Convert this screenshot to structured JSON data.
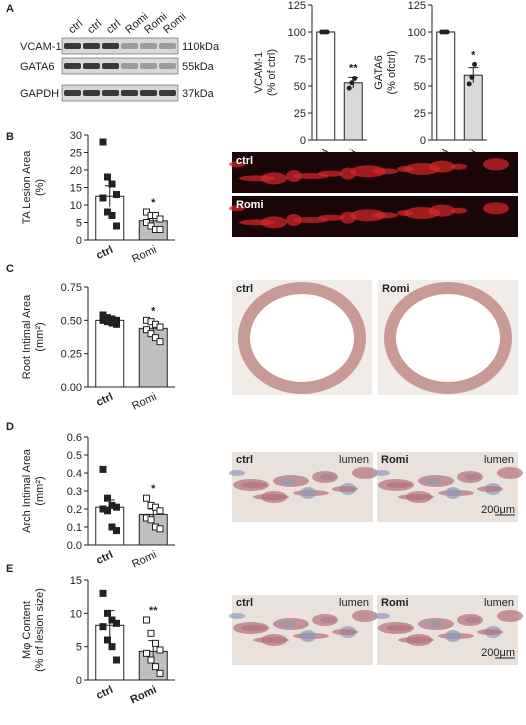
{
  "panels": [
    "A",
    "B",
    "C",
    "D",
    "E"
  ],
  "blot": {
    "lanes": [
      "ctrl",
      "ctrl",
      "ctrl",
      "Romi",
      "Romi",
      "Romi"
    ],
    "proteins": [
      "VCAM-1",
      "GATA6",
      "GAPDH"
    ],
    "sizes": [
      "110kDa",
      "55kDa",
      "37kDa"
    ]
  },
  "micrographs": [
    {
      "labels": [
        "ctrl",
        "Romi"
      ]
    },
    {
      "labels": [
        "ctrl",
        "Romi"
      ]
    },
    {
      "labels": [
        "ctrl",
        "lumen",
        "Romi",
        "lumen",
        "200μm"
      ]
    },
    {
      "labels": [
        "ctrl",
        "lumen",
        "Romi",
        "lumen",
        "200μm"
      ]
    }
  ],
  "chart_data": [
    {
      "type": "bar",
      "y_label": [
        "VCAM-1",
        "(% of ctrl)"
      ],
      "categories": [
        "ctrl",
        "Romi"
      ],
      "values": [
        100,
        53
      ],
      "errors": [
        0,
        5
      ],
      "points": [
        [
          100,
          100,
          100
        ],
        [
          48,
          53,
          57
        ]
      ],
      "marker": "circle",
      "colors": [
        "#ffffff",
        "#d9d9d9"
      ],
      "annotation": "**",
      "ylim": [
        0,
        125
      ],
      "yticks": [
        0,
        25,
        50,
        75,
        100,
        125
      ]
    },
    {
      "type": "bar",
      "y_label": [
        "GATA6",
        "(% ofctrl)"
      ],
      "categories": [
        "ctrl",
        "Romi"
      ],
      "values": [
        100,
        60
      ],
      "errors": [
        0,
        7
      ],
      "points": [
        [
          100,
          100,
          100
        ],
        [
          52,
          58,
          70
        ]
      ],
      "marker": "circle",
      "colors": [
        "#ffffff",
        "#d9d9d9"
      ],
      "annotation": "*",
      "ylim": [
        0,
        125
      ],
      "yticks": [
        0,
        25,
        50,
        75,
        100,
        125
      ]
    },
    {
      "type": "bar",
      "y_label": [
        "TA Lesion Area",
        "(%)"
      ],
      "categories": [
        "ctrl",
        "Romi"
      ],
      "values": [
        12.5,
        5.5
      ],
      "errors": [
        3,
        1
      ],
      "points": [
        [
          28,
          18,
          16,
          13,
          12,
          8,
          7,
          4
        ],
        [
          8,
          7,
          7,
          6,
          5,
          4,
          3,
          3
        ]
      ],
      "marker": "square",
      "colors": [
        "#ffffff",
        "#bfbfbf"
      ],
      "annotation": "*",
      "ylim": [
        0,
        30
      ],
      "yticks": [
        0,
        5,
        10,
        15,
        20,
        25,
        30
      ]
    },
    {
      "type": "bar",
      "y_label": [
        "Root Intimal Area",
        "(mm²)"
      ],
      "categories": [
        "ctrl",
        "Romi"
      ],
      "values": [
        0.5,
        0.44
      ],
      "errors": [
        0.02,
        0.03
      ],
      "points": [
        [
          0.54,
          0.52,
          0.51,
          0.5,
          0.5,
          0.49,
          0.48,
          0.47
        ],
        [
          0.5,
          0.49,
          0.47,
          0.45,
          0.43,
          0.4,
          0.37,
          0.34
        ]
      ],
      "marker": "square",
      "colors": [
        "#ffffff",
        "#bfbfbf"
      ],
      "annotation": "*",
      "ylim": [
        0,
        0.75
      ],
      "yticks": [
        {
          "value": 0,
          "label": "0.00"
        },
        {
          "value": 0.25,
          "label": "0.25"
        },
        {
          "value": 0.5,
          "label": "0.50"
        },
        {
          "value": 0.75,
          "label": "0.75"
        }
      ]
    },
    {
      "type": "bar",
      "y_label": [
        "Arch Intimal Area",
        "(mm²)"
      ],
      "categories": [
        "ctrl",
        "Romi"
      ],
      "values": [
        0.21,
        0.17
      ],
      "errors": [
        0.04,
        0.03
      ],
      "points": [
        [
          0.42,
          0.26,
          0.22,
          0.21,
          0.2,
          0.19,
          0.1,
          0.08
        ],
        [
          0.26,
          0.22,
          0.21,
          0.19,
          0.15,
          0.14,
          0.1,
          0.09
        ]
      ],
      "marker": "square",
      "colors": [
        "#ffffff",
        "#bfbfbf"
      ],
      "annotation": "*",
      "ylim": [
        0,
        0.6
      ],
      "yticks": [
        {
          "value": 0,
          "label": "0.0"
        },
        0.1,
        0.2,
        0.3,
        0.4,
        0.5,
        0.6
      ]
    },
    {
      "type": "bar",
      "y_label": [
        "Mφ Content",
        "(% of lesion size)"
      ],
      "categories": [
        "ctrl",
        "Romi"
      ],
      "values": [
        8.2,
        4.3
      ],
      "errors": [
        2.2,
        1.6
      ],
      "points": [
        [
          13,
          10,
          9,
          8.5,
          8,
          6,
          5,
          3
        ],
        [
          9,
          7,
          5.5,
          4.5,
          4,
          3,
          2,
          1
        ]
      ],
      "marker": "square",
      "colors": [
        "#ffffff",
        "#bfbfbf"
      ],
      "annotation": "**",
      "ylim": [
        0,
        15
      ],
      "yticks": [
        0,
        5,
        10,
        15
      ]
    }
  ]
}
